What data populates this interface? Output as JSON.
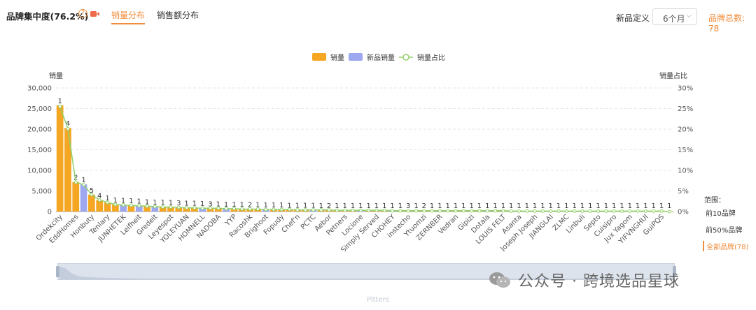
{
  "header": {
    "title": "品牌集中度(76.2%)",
    "tabs": [
      {
        "label": "销量分布",
        "active": true
      },
      {
        "label": "销售额分布",
        "active": false
      }
    ],
    "new_product_label": "新品定义",
    "period_select": {
      "value": "6个月"
    },
    "brand_total": "品牌总数: 78"
  },
  "side_panel": {
    "range_title": "范围：",
    "options": [
      {
        "label": "前10品牌",
        "active": false
      },
      {
        "label": "前50%品牌",
        "active": false
      },
      {
        "label": "全部品牌(78)",
        "active": true
      }
    ]
  },
  "slider": {
    "label": "Pitters"
  },
  "watermark": {
    "text": "公众号 · 跨境选品星球"
  },
  "colors": {
    "sales": "#f5a623",
    "new_sales": "#9ea8f0",
    "share": "#8fd16a",
    "accent": "#f08c3a"
  },
  "chart_data": {
    "type": "bar",
    "title": "",
    "legend": [
      "销量",
      "新品销量",
      "销量占比"
    ],
    "legend_position": "top-center",
    "ylabel": "销量",
    "y2label": "销量占比",
    "ylim": [
      0,
      30000
    ],
    "y_ticks": [
      "0",
      "5,000",
      "10,000",
      "15,000",
      "20,000",
      "25,000",
      "30,000"
    ],
    "y2lim": [
      0,
      30
    ],
    "y2_ticks": [
      "0%",
      "5%",
      "10%",
      "15%",
      "20%",
      "25%",
      "30%"
    ],
    "grid": true,
    "x_tick_labels": [
      "Ordekcity",
      "EddHomes",
      "Honbuty",
      "Tenlary",
      "JUNHETEK",
      "Leifheit",
      "Gredeit",
      "Leyespot",
      "YOLEYUAN",
      "HOMNELL",
      "NADOBA",
      "YYP",
      "Racoshk",
      "Brighoot",
      "Fopudy",
      "Chef'n",
      "PCTC",
      "Aebor",
      "Petners",
      "Locione",
      "Simply Served",
      "CHOHEY",
      "instecho",
      "Ytuomzi",
      "ZERNBER",
      "Vedran",
      "Gipizi",
      "Dotala",
      "LOUIS FELT",
      "Asanta",
      "Joseph Joseph",
      "JIANGLAI",
      "ZLMC",
      "Linbuli",
      "Septo",
      "Cuisipro",
      "Jux Yagom",
      "YIFVNGHUI",
      "GuiPQS"
    ],
    "series": [
      {
        "name": "销量",
        "values": [
          25800,
          20300,
          7200,
          6600,
          4100,
          2800,
          2200,
          1700,
          1600,
          1500,
          1400,
          1300,
          1200,
          1150,
          1100,
          1000,
          950,
          900,
          850,
          800,
          760,
          720,
          680,
          640,
          600,
          570,
          540,
          510,
          480,
          460,
          440,
          420,
          400,
          380,
          360,
          340,
          320,
          300,
          290,
          280,
          270,
          260,
          250,
          240,
          230,
          220,
          210,
          200,
          195,
          190,
          185,
          180,
          175,
          170,
          165,
          160,
          155,
          150,
          145,
          140,
          135,
          130,
          125,
          120,
          115,
          110,
          105,
          100,
          95,
          90,
          85,
          80,
          75,
          70,
          65,
          60,
          55,
          50
        ]
      },
      {
        "name": "新品销量",
        "values": [
          0,
          0,
          0,
          6600,
          0,
          0,
          0,
          0,
          1600,
          0,
          1400,
          0,
          1200,
          0,
          0,
          0,
          0,
          0,
          850,
          0,
          0,
          720,
          0,
          0,
          0,
          0,
          540,
          0,
          0,
          0,
          0,
          0,
          400,
          0,
          0,
          0,
          0,
          0,
          290,
          0,
          0,
          0,
          250,
          0,
          0,
          0,
          0,
          0,
          195,
          0,
          0,
          0,
          0,
          0,
          165,
          0,
          0,
          0,
          0,
          0,
          135,
          0,
          0,
          0,
          0,
          0,
          105,
          0,
          0,
          0,
          0,
          0,
          75,
          0,
          0,
          0,
          0,
          0
        ]
      },
      {
        "name": "销量占比",
        "values": [
          25.5,
          20.1,
          7.1,
          6.5,
          4.1,
          2.8,
          2.2,
          1.7,
          1.6,
          1.5,
          1.4,
          1.3,
          1.2,
          1.1,
          1.1,
          1.0,
          0.9,
          0.9,
          0.8,
          0.8,
          0.8,
          0.7,
          0.7,
          0.6,
          0.6,
          0.6,
          0.5,
          0.5,
          0.5,
          0.5,
          0.4,
          0.4,
          0.4,
          0.4,
          0.4,
          0.3,
          0.3,
          0.3,
          0.3,
          0.3,
          0.3,
          0.3,
          0.2,
          0.2,
          0.2,
          0.2,
          0.2,
          0.2,
          0.2,
          0.2,
          0.2,
          0.2,
          0.2,
          0.2,
          0.2,
          0.2,
          0.2,
          0.1,
          0.1,
          0.1,
          0.1,
          0.1,
          0.1,
          0.1,
          0.1,
          0.1,
          0.1,
          0.1,
          0.1,
          0.1,
          0.1,
          0.1,
          0.1,
          0.1,
          0.1,
          0.1,
          0.1,
          0.0
        ]
      }
    ],
    "bar_labels": [
      "1",
      "4",
      "2",
      "1",
      "5",
      "4",
      "1",
      "1",
      "1",
      "1",
      "1",
      "1",
      "1",
      "1",
      "1",
      "3",
      "1",
      "1",
      "1",
      "3",
      "1",
      "1",
      "1",
      "1",
      "2",
      "1",
      "1",
      "1",
      "1",
      "1",
      "1",
      "1",
      "1",
      "1",
      "2",
      "1",
      "1",
      "1",
      "1",
      "1",
      "1",
      "1",
      "1",
      "1",
      "3",
      "1",
      "2",
      "1",
      "1",
      "1",
      "1",
      "1",
      "1",
      "1",
      "1",
      "1",
      "1",
      "1",
      "1",
      "1",
      "1",
      "1",
      "1",
      "1",
      "1",
      "1",
      "1",
      "1",
      "1",
      "1",
      "1",
      "1",
      "1",
      "1",
      "1",
      "1",
      "1",
      "1"
    ]
  }
}
